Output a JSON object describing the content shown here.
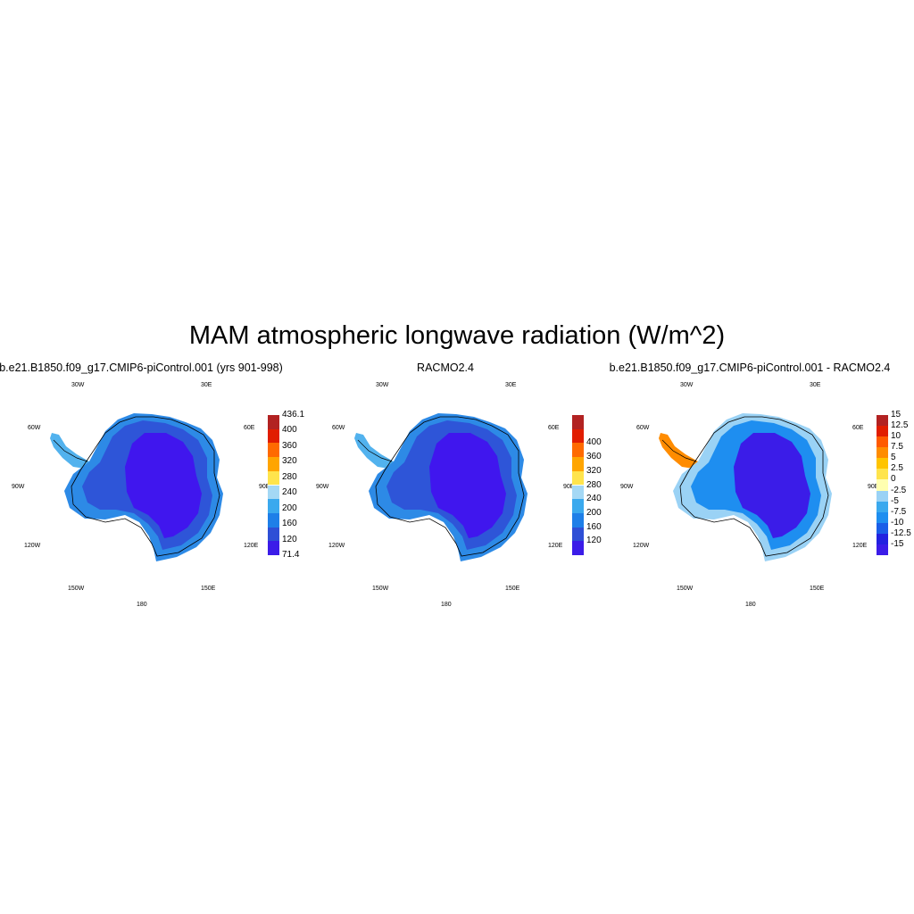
{
  "title": "MAM atmospheric longwave radiation (W/m^2)",
  "longitude_labels": {
    "lon30w": "30W",
    "lon30e": "30E",
    "lon60w": "60W",
    "lon60e": "60E",
    "lon90w": "90W",
    "lon90e": "90E",
    "lon120w": "120W",
    "lon120e": "120E",
    "lon150w": "150W",
    "lon150e": "150E",
    "lon180": "180"
  },
  "panels": [
    {
      "id": "model",
      "title": "b.e21.B1850.f09_g17.CMIP6-piControl.001 (yrs 901-998)",
      "colorbar": {
        "colors": [
          "#3b1ce8",
          "#2e4fd6",
          "#1e7fe8",
          "#3aa9ee",
          "#a4d8f5",
          "#ffe44c",
          "#ffa500",
          "#ff6a00",
          "#e11d00",
          "#b22222"
        ],
        "labels": [
          "71.4",
          "120",
          "160",
          "200",
          "240",
          "280",
          "320",
          "360",
          "400",
          "436.1"
        ],
        "label_mode": "edges"
      },
      "map_fill": {
        "interior": "#4016ee",
        "middle": "#2e55d8",
        "coast": "#2d8ae6",
        "peninsula": "#52b2ee"
      }
    },
    {
      "id": "racmo",
      "title": "RACMO2.4",
      "colorbar": {
        "colors": [
          "#3b1ce8",
          "#2e4fd6",
          "#1e7fe8",
          "#3aa9ee",
          "#a4d8f5",
          "#ffe44c",
          "#ffa500",
          "#ff6a00",
          "#e11d00",
          "#b22222"
        ],
        "labels": [
          "120",
          "160",
          "200",
          "240",
          "280",
          "320",
          "360",
          "400"
        ],
        "label_mode": "inner"
      },
      "map_fill": {
        "interior": "#4016ee",
        "middle": "#2e55d8",
        "coast": "#2d8ae6",
        "peninsula": "#52b2ee"
      }
    },
    {
      "id": "difference",
      "title": "b.e21.B1850.f09_g17.CMIP6-piControl.001 - RACMO2.4",
      "colorbar": {
        "colors": [
          "#3b1ce8",
          "#2222e0",
          "#1a5ee8",
          "#1e8ef0",
          "#3aa9ee",
          "#9ad2f5",
          "#ffffb0",
          "#ffe44c",
          "#ffc400",
          "#ff8c00",
          "#ff5a00",
          "#e11d00",
          "#b22222"
        ],
        "labels": [
          "-15",
          "-12.5",
          "-10",
          "-7.5",
          "-5",
          "-2.5",
          "0",
          "2.5",
          "5",
          "7.5",
          "10",
          "12.5",
          "15"
        ],
        "label_mode": "inner"
      },
      "map_fill": {
        "interior": "#3b1ce8",
        "middle": "#1e8ef0",
        "coast": "#9ad2f5",
        "peninsula": "#ff8c00"
      }
    }
  ]
}
